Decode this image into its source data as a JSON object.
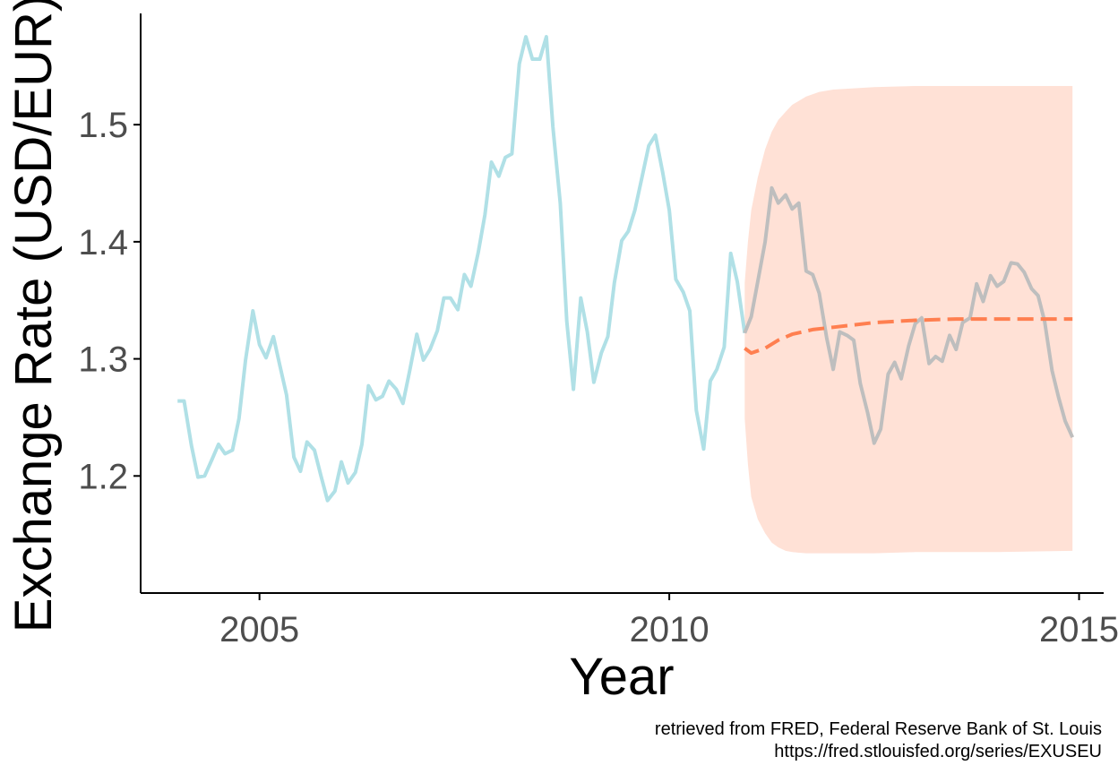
{
  "chart_data": {
    "type": "line",
    "title": "",
    "xlabel": "Year",
    "ylabel": "Exchange Rate (USD/EUR)",
    "xlim": [
      2003.55,
      2015.3
    ],
    "ylim": [
      1.1,
      1.595
    ],
    "x_ticks": [
      2005,
      2010,
      2015
    ],
    "x_tick_labels": [
      "2005",
      "2010",
      "2015"
    ],
    "y_ticks": [
      1.2,
      1.3,
      1.4,
      1.5
    ],
    "y_tick_labels": [
      "1.2",
      "1.3",
      "1.4",
      "1.5"
    ],
    "grid": false,
    "legend": "none",
    "caption": [
      "retrieved from FRED, Federal Reserve Bank of St. Louis",
      "https://fred.stlouisfed.org/series/EXUSEU"
    ],
    "series": [
      {
        "role": "observed",
        "color": "#b0e0e6",
        "x": [
          2004.0,
          2004.08,
          2004.17,
          2004.25,
          2004.33,
          2004.42,
          2004.5,
          2004.58,
          2004.67,
          2004.75,
          2004.83,
          2004.92,
          2005.0,
          2005.08,
          2005.17,
          2005.25,
          2005.33,
          2005.42,
          2005.5,
          2005.58,
          2005.67,
          2005.75,
          2005.83,
          2005.92,
          2006.0,
          2006.08,
          2006.17,
          2006.25,
          2006.33,
          2006.42,
          2006.5,
          2006.58,
          2006.67,
          2006.75,
          2006.83,
          2006.92,
          2007.0,
          2007.08,
          2007.17,
          2007.25,
          2007.33,
          2007.42,
          2007.5,
          2007.58,
          2007.67,
          2007.75,
          2007.83,
          2007.92,
          2008.0,
          2008.08,
          2008.17,
          2008.25,
          2008.33,
          2008.42,
          2008.5,
          2008.58,
          2008.67,
          2008.75,
          2008.83,
          2008.92,
          2009.0,
          2009.08,
          2009.17,
          2009.25,
          2009.33,
          2009.42,
          2009.5,
          2009.58,
          2009.67,
          2009.75,
          2009.83,
          2009.92,
          2010.0,
          2010.08,
          2010.17,
          2010.25,
          2010.33,
          2010.42,
          2010.5,
          2010.58,
          2010.67,
          2010.75,
          2010.83,
          2010.92
        ],
        "y": [
          1.264,
          1.264,
          1.226,
          1.199,
          1.2,
          1.214,
          1.227,
          1.219,
          1.222,
          1.249,
          1.299,
          1.341,
          1.312,
          1.301,
          1.319,
          1.294,
          1.269,
          1.216,
          1.204,
          1.229,
          1.222,
          1.2,
          1.179,
          1.187,
          1.212,
          1.194,
          1.203,
          1.227,
          1.277,
          1.265,
          1.268,
          1.281,
          1.274,
          1.262,
          1.289,
          1.321,
          1.299,
          1.308,
          1.324,
          1.352,
          1.352,
          1.342,
          1.372,
          1.362,
          1.391,
          1.423,
          1.468,
          1.456,
          1.472,
          1.475,
          1.552,
          1.575,
          1.556,
          1.556,
          1.575,
          1.498,
          1.433,
          1.332,
          1.274,
          1.352,
          1.323,
          1.28,
          1.305,
          1.319,
          1.365,
          1.401,
          1.409,
          1.427,
          1.456,
          1.482,
          1.491,
          1.459,
          1.427,
          1.368,
          1.357,
          1.341,
          1.256,
          1.223,
          1.281,
          1.291,
          1.31,
          1.39,
          1.366,
          1.322
        ]
      },
      {
        "role": "actual",
        "color": "#bebebe",
        "x": [
          2010.92,
          2011.0,
          2011.08,
          2011.17,
          2011.25,
          2011.33,
          2011.42,
          2011.5,
          2011.58,
          2011.67,
          2011.75,
          2011.83,
          2011.92,
          2012.0,
          2012.08,
          2012.17,
          2012.25,
          2012.33,
          2012.42,
          2012.5,
          2012.58,
          2012.67,
          2012.75,
          2012.83,
          2012.92,
          2013.0,
          2013.08,
          2013.17,
          2013.25,
          2013.33,
          2013.42,
          2013.5,
          2013.58,
          2013.67,
          2013.75,
          2013.83,
          2013.92,
          2014.0,
          2014.08,
          2014.17,
          2014.25,
          2014.33,
          2014.42,
          2014.5,
          2014.58,
          2014.67,
          2014.75,
          2014.83,
          2014.92
        ],
        "y": [
          1.322,
          1.336,
          1.366,
          1.4,
          1.446,
          1.433,
          1.44,
          1.428,
          1.433,
          1.375,
          1.372,
          1.356,
          1.318,
          1.291,
          1.323,
          1.32,
          1.316,
          1.279,
          1.254,
          1.228,
          1.24,
          1.287,
          1.297,
          1.283,
          1.311,
          1.33,
          1.335,
          1.296,
          1.302,
          1.298,
          1.32,
          1.308,
          1.331,
          1.335,
          1.364,
          1.349,
          1.371,
          1.362,
          1.366,
          1.382,
          1.381,
          1.374,
          1.36,
          1.354,
          1.332,
          1.29,
          1.267,
          1.247,
          1.233
        ]
      },
      {
        "role": "forecast",
        "color": "#ff7f50",
        "dashed": true,
        "x": [
          2010.92,
          2011.0,
          2011.17,
          2011.33,
          2011.5,
          2011.75,
          2012.0,
          2012.25,
          2012.5,
          2012.75,
          2013.0,
          2013.5,
          2014.0,
          2014.5,
          2014.92
        ],
        "y": [
          1.309,
          1.305,
          1.309,
          1.316,
          1.321,
          1.325,
          1.327,
          1.329,
          1.331,
          1.332,
          1.333,
          1.334,
          1.334,
          1.334,
          1.334
        ]
      }
    ],
    "interval": {
      "color": "#ffe1d6",
      "x": [
        2010.92,
        2010.96,
        2011.0,
        2011.08,
        2011.17,
        2011.25,
        2011.33,
        2011.42,
        2011.5,
        2011.67,
        2011.83,
        2012.0,
        2012.5,
        2013.0,
        2014.0,
        2014.92
      ],
      "upper": [
        1.365,
        1.4,
        1.427,
        1.455,
        1.479,
        1.494,
        1.504,
        1.511,
        1.517,
        1.524,
        1.528,
        1.53,
        1.532,
        1.533,
        1.533,
        1.533
      ],
      "lower": [
        1.249,
        1.21,
        1.182,
        1.163,
        1.151,
        1.143,
        1.139,
        1.136,
        1.135,
        1.134,
        1.134,
        1.134,
        1.134,
        1.135,
        1.135,
        1.136
      ]
    }
  }
}
